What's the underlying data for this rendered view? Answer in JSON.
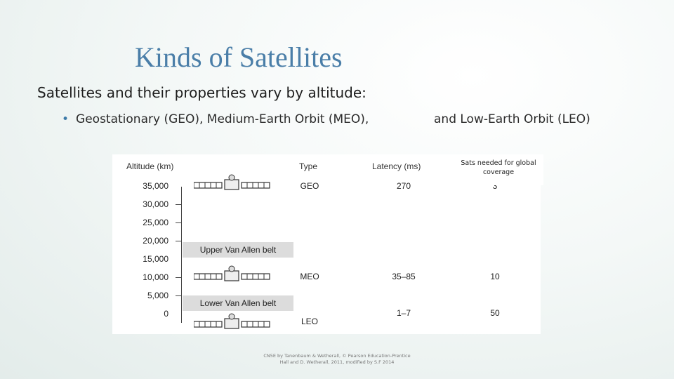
{
  "slide": {
    "title": "Kinds of Satellites",
    "subtitle": "Satellites and their properties vary by altitude:",
    "bullet_part1": "Geostationary (GEO), Medium-Earth Orbit (MEO),",
    "bullet_part2": "and Low-Earth Orbit (LEO)",
    "footer_line1": "CN5E by Tanenbaum & Wetherall, © Pearson Education-Prentice",
    "footer_line2": "Hall and D. Wetherall, 2011, modified by S.F 2014"
  },
  "figure": {
    "headers": {
      "altitude": "Altitude (km)",
      "type": "Type",
      "latency": "Latency (ms)",
      "sats_needed": "Sats needed for global coverage"
    },
    "altitudes": [
      "35,000",
      "30,000",
      "25,000",
      "20,000",
      "15,000",
      "10,000",
      "5,000",
      "0"
    ],
    "belts": {
      "upper": "Upper Van Allen belt",
      "lower": "Lower Van Allen belt"
    },
    "rows": [
      {
        "type": "GEO",
        "latency": "270",
        "sats": "3"
      },
      {
        "type": "MEO",
        "latency": "35–85",
        "sats": "10"
      },
      {
        "type": "LEO",
        "latency": "1–7",
        "sats": "50"
      }
    ]
  },
  "icons": {
    "satellite": "satellite-icon",
    "bullet": "bullet-dot-icon"
  }
}
